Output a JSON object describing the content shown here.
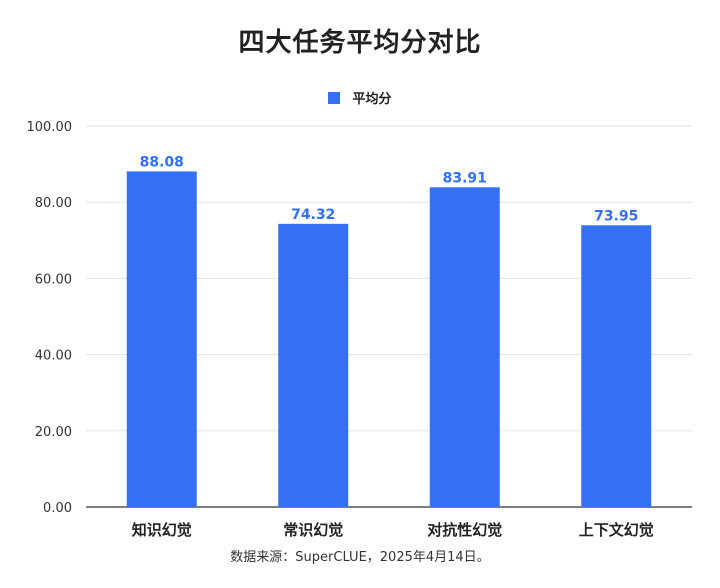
{
  "chart_data": {
    "type": "bar",
    "title": "四大任务平均分对比",
    "categories": [
      "知识幻觉",
      "常识幻觉",
      "对抗性幻觉",
      "上下文幻觉"
    ],
    "series": [
      {
        "name": "平均分",
        "values": [
          88.08,
          74.32,
          83.91,
          73.95
        ],
        "data_labels": [
          "88.08",
          "74.32",
          "83.91",
          "73.95"
        ]
      }
    ],
    "ylim": [
      0,
      100
    ],
    "yticks": [
      0,
      20,
      40,
      60,
      80,
      100
    ],
    "ytick_labels": [
      "0.00",
      "20.00",
      "40.00",
      "60.00",
      "80.00",
      "100.00"
    ],
    "xlabel": "",
    "ylabel": "",
    "legend_position": "top-center",
    "grid": true,
    "colors": {
      "bar": "#3370F6",
      "data_label": "#3370F6",
      "grid": "#E3E3E3",
      "axis": "#555555"
    }
  },
  "source": "数据来源：SuperCLUE，2025年4月14日。"
}
